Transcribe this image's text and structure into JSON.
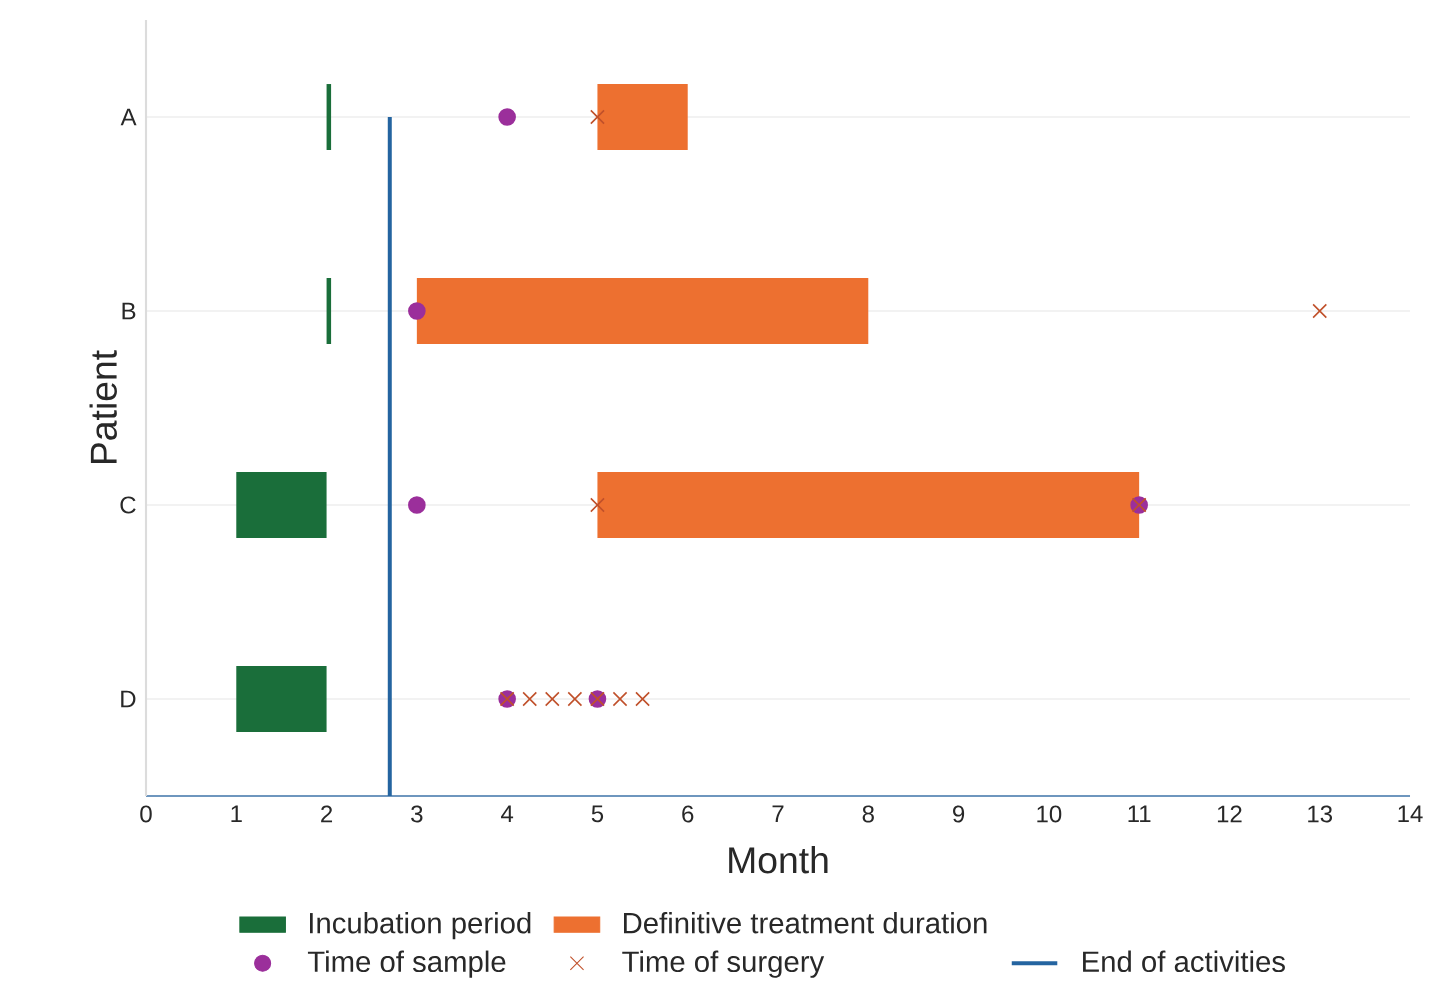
{
  "chart_data": {
    "type": "bar",
    "orientation": "horizontal",
    "xlabel": "Month",
    "ylabel": "Patient",
    "categories": [
      "A",
      "B",
      "C",
      "D"
    ],
    "series": [
      {
        "name": "Incubation period",
        "color": "#1a6e3a",
        "base": [
          2,
          2,
          1,
          1
        ],
        "values": [
          0.05,
          0.05,
          1,
          1
        ]
      },
      {
        "name": "Definitive treatment duration",
        "color": "#ed7030",
        "base": [
          5,
          3,
          5,
          null
        ],
        "values": [
          1,
          5,
          6,
          null
        ]
      },
      {
        "type": "scatter",
        "name": "Time of sample",
        "color": "#9b2f9b",
        "marker": "circle",
        "x": [
          "A",
          "B",
          "C",
          "C",
          "D",
          "D"
        ],
        "values": [
          4,
          3,
          3,
          11,
          4,
          5
        ]
      },
      {
        "type": "scatter",
        "name": "Time of surgery",
        "color": "#c0502a",
        "marker": "cross",
        "x": [
          "A",
          "B",
          "C",
          "C",
          "D",
          "D",
          "D",
          "D",
          "D",
          "D",
          "D"
        ],
        "values": [
          5,
          13,
          5,
          11,
          4,
          4.25,
          4.5,
          4.75,
          5,
          5.25,
          5.5
        ]
      }
    ],
    "ref_lines": [
      {
        "axis": "x",
        "value": 2.7,
        "label": "End of activities",
        "color": "#2464a0"
      }
    ],
    "xlim": [
      0,
      14
    ],
    "xticks": [
      0,
      1,
      2,
      3,
      4,
      5,
      6,
      7,
      8,
      9,
      10,
      11,
      12,
      13,
      14
    ],
    "grid": "y",
    "legend": "bottom"
  }
}
